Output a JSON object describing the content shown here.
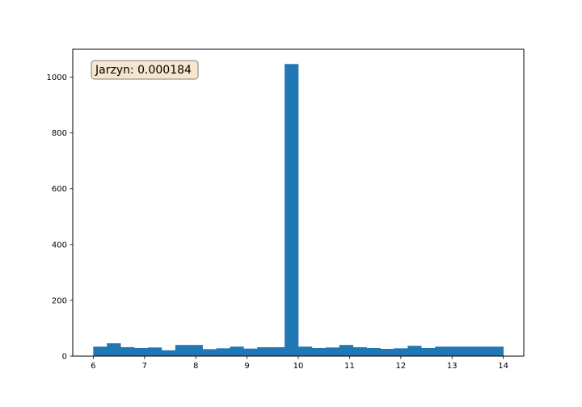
{
  "chart_data": {
    "type": "bar",
    "title": "",
    "xlabel": "",
    "ylabel": "",
    "xlim": [
      5.6,
      14.4
    ],
    "ylim": [
      0,
      1100
    ],
    "xticks": [
      6,
      7,
      8,
      9,
      10,
      11,
      12,
      13,
      14
    ],
    "yticks": [
      0,
      200,
      400,
      600,
      800,
      1000
    ],
    "grid": false,
    "bar_color": "#1f77b4",
    "bins": {
      "start": 6.0,
      "width": 0.2667,
      "values": [
        34,
        46,
        32,
        29,
        31,
        21,
        40,
        40,
        25,
        28,
        34,
        27,
        32,
        32,
        1047,
        34,
        29,
        31,
        40,
        32,
        29,
        26,
        28,
        37,
        29,
        34,
        34,
        34,
        34,
        34
      ]
    },
    "annotation": {
      "text": "Jarzyn:  0.000184",
      "box_color": "#f5e6ce",
      "box_edge_color": "#7f7f7f"
    }
  }
}
